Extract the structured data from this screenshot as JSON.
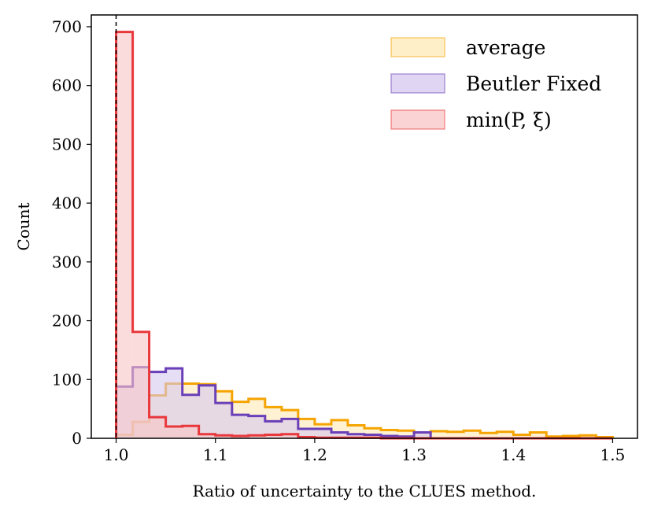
{
  "chart_data": {
    "type": "histogram",
    "xlabel": "Ratio of uncertainty to the CLUES method.",
    "ylabel": "Count",
    "xlim": [
      0.975,
      1.525
    ],
    "ylim": [
      0,
      720
    ],
    "xticks": [
      1.0,
      1.1,
      1.2,
      1.3,
      1.4,
      1.5
    ],
    "xtick_labels": [
      "1.0",
      "1.1",
      "1.2",
      "1.3",
      "1.4",
      "1.5"
    ],
    "yticks": [
      0,
      100,
      200,
      300,
      400,
      500,
      600,
      700
    ],
    "ytick_labels": [
      "0",
      "100",
      "200",
      "300",
      "400",
      "500",
      "600",
      "700"
    ],
    "grid": false,
    "legend_position": "top-right",
    "reference_line": {
      "x": 1.0,
      "style": "dashed",
      "color": "#000000"
    },
    "bin_edges": [
      1.0,
      1.0167,
      1.0333,
      1.05,
      1.0667,
      1.0833,
      1.1,
      1.1167,
      1.1333,
      1.15,
      1.1667,
      1.1833,
      1.2,
      1.2167,
      1.2333,
      1.25,
      1.2667,
      1.2833,
      1.3,
      1.3167,
      1.3333,
      1.35,
      1.3667,
      1.3833,
      1.4,
      1.4167,
      1.4333,
      1.45,
      1.4667,
      1.4833,
      1.5
    ],
    "series": [
      {
        "name": "average",
        "edge_color": "#f5a400",
        "fill_color": "#fde9b5",
        "values": [
          6,
          28,
          73,
          93,
          93,
          92,
          80,
          62,
          67,
          53,
          48,
          33,
          24,
          31,
          22,
          17,
          14,
          13,
          10,
          12,
          11,
          13,
          9,
          11,
          6,
          10,
          3,
          4,
          5,
          2
        ]
      },
      {
        "name": "Beutler Fixed",
        "edge_color": "#6a3fb8",
        "fill_color": "#d5c8ef",
        "values": [
          88,
          121,
          113,
          119,
          74,
          90,
          60,
          40,
          38,
          29,
          33,
          16,
          16,
          10,
          7,
          6,
          4,
          3,
          10,
          0,
          0,
          0,
          0,
          0,
          0,
          0,
          0,
          0,
          0,
          0
        ]
      },
      {
        "name": "min(P, ξ)",
        "edge_color": "#e8383c",
        "fill_color": "#f8c5c5",
        "values": [
          691,
          181,
          36,
          20,
          21,
          7,
          5,
          4,
          5,
          6,
          7,
          2,
          1,
          1,
          1,
          1,
          0,
          0,
          0,
          0,
          0,
          0,
          0,
          0,
          0,
          0,
          0,
          0,
          0,
          0
        ]
      }
    ]
  }
}
